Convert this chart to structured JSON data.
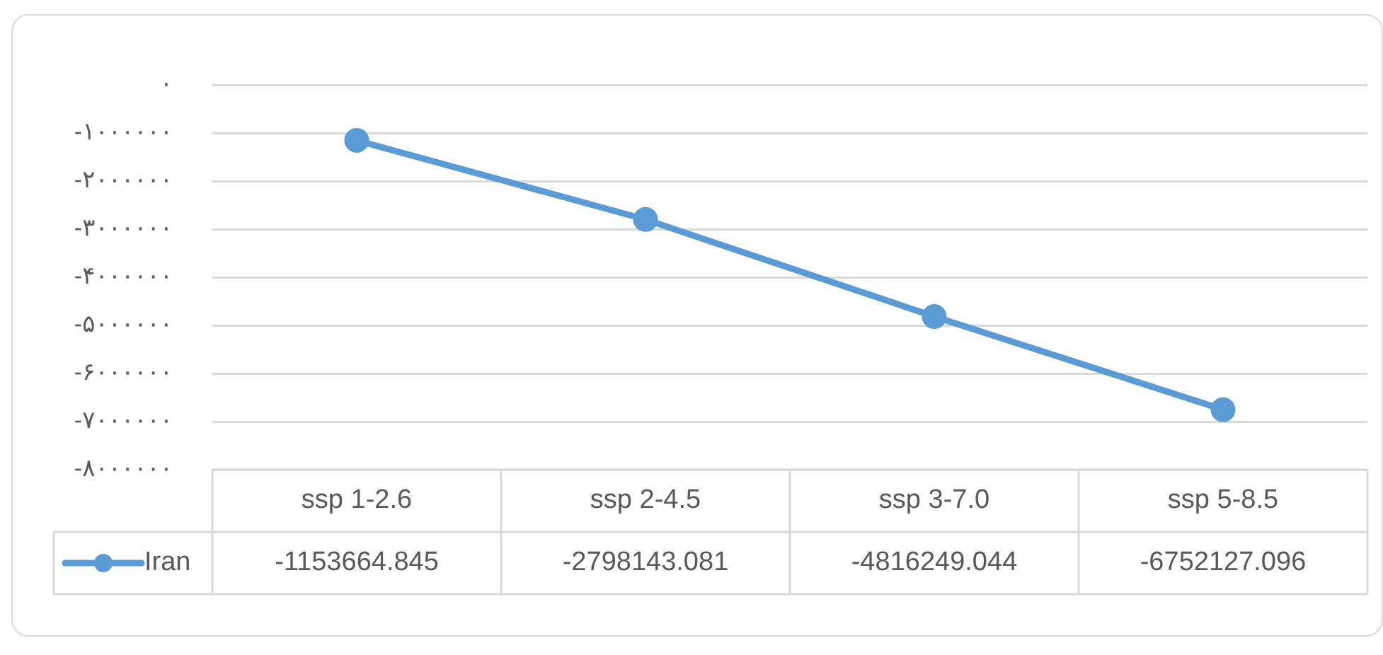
{
  "chart_data": {
    "type": "line",
    "categories": [
      "ssp 1-2.6",
      "ssp 2-4.5",
      "ssp 3-7.0",
      "ssp 5-8.5"
    ],
    "series": [
      {
        "name": "Iran",
        "color": "#5b9bd5",
        "values": [
          -1153664.845,
          -2798143.081,
          -4816249.044,
          -6752127.096
        ]
      }
    ],
    "ylim": [
      -8000000,
      0
    ],
    "yticks": [
      {
        "value": 0,
        "label": "۰"
      },
      {
        "value": -1000000,
        "label": "-۱۰۰۰۰۰۰"
      },
      {
        "value": -2000000,
        "label": "-۲۰۰۰۰۰۰"
      },
      {
        "value": -3000000,
        "label": "-۳۰۰۰۰۰۰"
      },
      {
        "value": -4000000,
        "label": "-۴۰۰۰۰۰۰"
      },
      {
        "value": -5000000,
        "label": "-۵۰۰۰۰۰۰"
      },
      {
        "value": -6000000,
        "label": "-۶۰۰۰۰۰۰"
      },
      {
        "value": -7000000,
        "label": "-۷۰۰۰۰۰۰"
      },
      {
        "value": -8000000,
        "label": "-۸۰۰۰۰۰۰"
      }
    ],
    "grid": "y",
    "marker": "circle",
    "line_style": "solid",
    "data_labels": true,
    "legend": "bottom left"
  }
}
